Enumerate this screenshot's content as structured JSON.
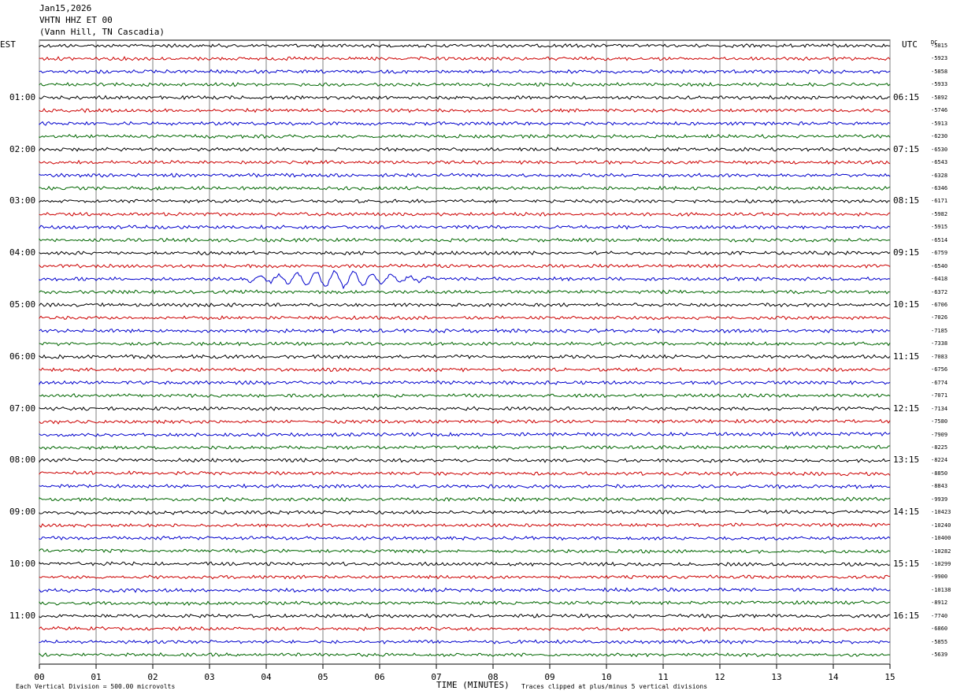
{
  "header": {
    "date": "Jan15,2026",
    "channel": "VHTN HHZ ET 00",
    "station": "(Vann Hill, TN Cascadia)"
  },
  "left_axis_label": "EST",
  "right_axis_label": "UTC",
  "dc_label": "DC",
  "x_axis_title": "TIME (MINUTES)",
  "footer": {
    "scale_note": "Each Vertical Division =  500.00 microvolts",
    "clip_note": "Traces clipped at plus/minus 5 vertical divisions"
  },
  "colors": {
    "trace_cycle": [
      "#000000",
      "#cc0000",
      "#0000cc",
      "#006600"
    ],
    "grid": "#808080"
  },
  "chart_data": {
    "type": "seismogram",
    "x": {
      "min": 0,
      "max": 15,
      "ticks": [
        "00",
        "01",
        "02",
        "03",
        "04",
        "05",
        "06",
        "07",
        "08",
        "09",
        "10",
        "11",
        "12",
        "13",
        "14",
        "15"
      ]
    },
    "traces_per_hour": 4,
    "left_hour_labels": [
      "01:00",
      "02:00",
      "03:00",
      "04:00",
      "05:00",
      "06:00",
      "07:00",
      "08:00",
      "09:00",
      "10:00",
      "11:00"
    ],
    "right_hour_labels": [
      "06:15",
      "07:15",
      "08:15",
      "09:15",
      "10:15",
      "11:15",
      "12:15",
      "13:15",
      "14:15",
      "15:15",
      "16:15"
    ],
    "dc_values": [
      "-5815",
      "-5923",
      "-5858",
      "-5933",
      "-5892",
      "-5746",
      "-5913",
      "-6230",
      "-6530",
      "-6543",
      "-6328",
      "-6346",
      "-6171",
      "-5982",
      "-5915",
      "-6514",
      "-6759",
      "-6540",
      "-6418",
      "-6372",
      "-6706",
      "-7026",
      "-7185",
      "-7338",
      "-7083",
      "-6756",
      "-6774",
      "-7071",
      "-7134",
      "-7580",
      "-7909",
      "-8225",
      "-8224",
      "-8850",
      "-8843",
      "-9939",
      "-10423",
      "-10240",
      "-10400",
      "-10282",
      "-10299",
      "-9900",
      "-10138",
      "-8912",
      "-7740",
      "-6860",
      "-5855",
      "-5639"
    ],
    "event": {
      "trace_index": 18,
      "start_minute": 3.6,
      "end_minute": 7.0,
      "peak_minute": 5.2,
      "description": ""
    }
  }
}
